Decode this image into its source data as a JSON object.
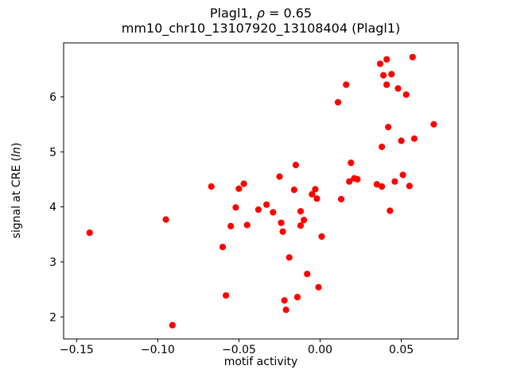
{
  "chart_data": {
    "type": "scatter",
    "title": "Plagl1, ρ = 0.65",
    "title_parts": {
      "pre": "Plagl1, ",
      "italic": "ρ",
      "post": " = 0.65"
    },
    "subtitle": "mm10_chr10_13107920_13108404 (Plagl1)",
    "xlabel": "motif activity",
    "ylabel": "signal at CRE (ln)",
    "ylabel_parts": {
      "pre": "signal at CRE (",
      "italic": "ln",
      "post": ")"
    },
    "xlim": [
      -0.158,
      0.085
    ],
    "ylim": [
      1.6,
      6.98
    ],
    "xticks": [
      -0.15,
      -0.1,
      -0.05,
      0,
      0.05
    ],
    "xtick_labels": [
      "−0.15",
      "−0.10",
      "−0.05",
      "0.00",
      "0.05"
    ],
    "yticks": [
      2,
      3,
      4,
      5,
      6
    ],
    "ytick_labels": [
      "2",
      "3",
      "4",
      "5",
      "6"
    ],
    "grid": false,
    "legend": "none",
    "marker_color": "#ff0000",
    "marker_shape": "circle",
    "points": [
      [
        -0.142,
        3.53
      ],
      [
        -0.095,
        3.77
      ],
      [
        -0.091,
        1.85
      ],
      [
        -0.067,
        4.37
      ],
      [
        -0.06,
        3.27
      ],
      [
        -0.058,
        2.39
      ],
      [
        -0.055,
        3.65
      ],
      [
        -0.052,
        3.99
      ],
      [
        -0.05,
        4.33
      ],
      [
        -0.047,
        4.42
      ],
      [
        -0.045,
        3.67
      ],
      [
        -0.038,
        3.95
      ],
      [
        -0.033,
        4.04
      ],
      [
        -0.029,
        3.9
      ],
      [
        -0.025,
        4.55
      ],
      [
        -0.024,
        3.71
      ],
      [
        -0.023,
        3.55
      ],
      [
        -0.022,
        2.3
      ],
      [
        -0.021,
        2.13
      ],
      [
        -0.019,
        3.08
      ],
      [
        -0.016,
        4.31
      ],
      [
        -0.015,
        4.76
      ],
      [
        -0.014,
        2.36
      ],
      [
        -0.012,
        3.92
      ],
      [
        -0.012,
        3.66
      ],
      [
        -0.01,
        3.76
      ],
      [
        -0.008,
        2.78
      ],
      [
        -0.005,
        4.23
      ],
      [
        -0.003,
        4.32
      ],
      [
        -0.002,
        4.15
      ],
      [
        -0.001,
        2.54
      ],
      [
        0.001,
        3.46
      ],
      [
        0.011,
        5.9
      ],
      [
        0.013,
        4.14
      ],
      [
        0.016,
        6.22
      ],
      [
        0.018,
        4.46
      ],
      [
        0.019,
        4.8
      ],
      [
        0.021,
        4.52
      ],
      [
        0.023,
        4.5
      ],
      [
        0.035,
        4.41
      ],
      [
        0.037,
        6.6
      ],
      [
        0.038,
        4.37
      ],
      [
        0.038,
        5.09
      ],
      [
        0.039,
        6.39
      ],
      [
        0.041,
        6.22
      ],
      [
        0.041,
        6.68
      ],
      [
        0.042,
        5.45
      ],
      [
        0.043,
        3.93
      ],
      [
        0.044,
        6.41
      ],
      [
        0.046,
        4.46
      ],
      [
        0.048,
        6.15
      ],
      [
        0.05,
        5.2
      ],
      [
        0.051,
        4.58
      ],
      [
        0.053,
        6.04
      ],
      [
        0.055,
        4.38
      ],
      [
        0.057,
        6.72
      ],
      [
        0.058,
        5.24
      ],
      [
        0.07,
        5.5
      ]
    ]
  }
}
